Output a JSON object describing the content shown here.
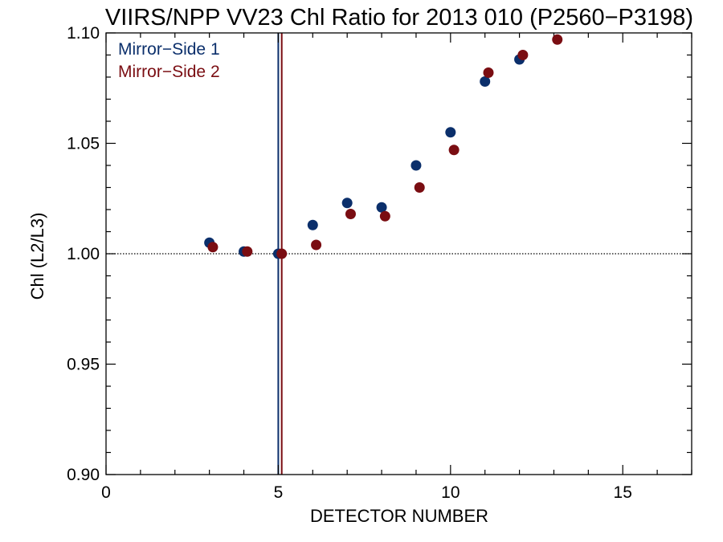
{
  "chart_data": {
    "type": "scatter",
    "title": "VIIRS/NPP VV23 Chl Ratio for 2013 010 (P2560−P3198)",
    "xlabel": "DETECTOR NUMBER",
    "ylabel": "Chl (L2/L3)",
    "xlim": [
      0,
      17
    ],
    "ylim": [
      0.9,
      1.1
    ],
    "x_ticks": [
      0,
      5,
      10,
      15
    ],
    "x_tick_labels": [
      "0",
      "5",
      "10",
      "15"
    ],
    "y_ticks": [
      0.9,
      0.95,
      1.0,
      1.05,
      1.1
    ],
    "y_tick_labels": [
      "0.90",
      "0.95",
      "1.00",
      "1.05",
      "1.10"
    ],
    "reference_line_y": 1.0,
    "vertical_lines": [
      {
        "x": 5.0,
        "color": "#0b2f6b"
      },
      {
        "x": 5.1,
        "color": "#7a0d12"
      }
    ],
    "legend_position": "top-left",
    "series": [
      {
        "name": "Mirror−Side 1",
        "color": "#0b2f6b",
        "x": [
          3,
          4,
          5,
          6,
          7,
          8,
          9,
          10,
          11,
          12
        ],
        "values": [
          1.005,
          1.001,
          1.0,
          1.013,
          1.023,
          1.021,
          1.04,
          1.055,
          1.078,
          1.088
        ]
      },
      {
        "name": "Mirror−Side 2",
        "color": "#7a0d12",
        "x": [
          3.1,
          4.1,
          5.1,
          6.1,
          7.1,
          8.1,
          9.1,
          10.1,
          11.1,
          12.1,
          13.1
        ],
        "values": [
          1.003,
          1.001,
          1.0,
          1.004,
          1.018,
          1.017,
          1.03,
          1.047,
          1.082,
          1.09,
          1.097
        ]
      }
    ]
  }
}
